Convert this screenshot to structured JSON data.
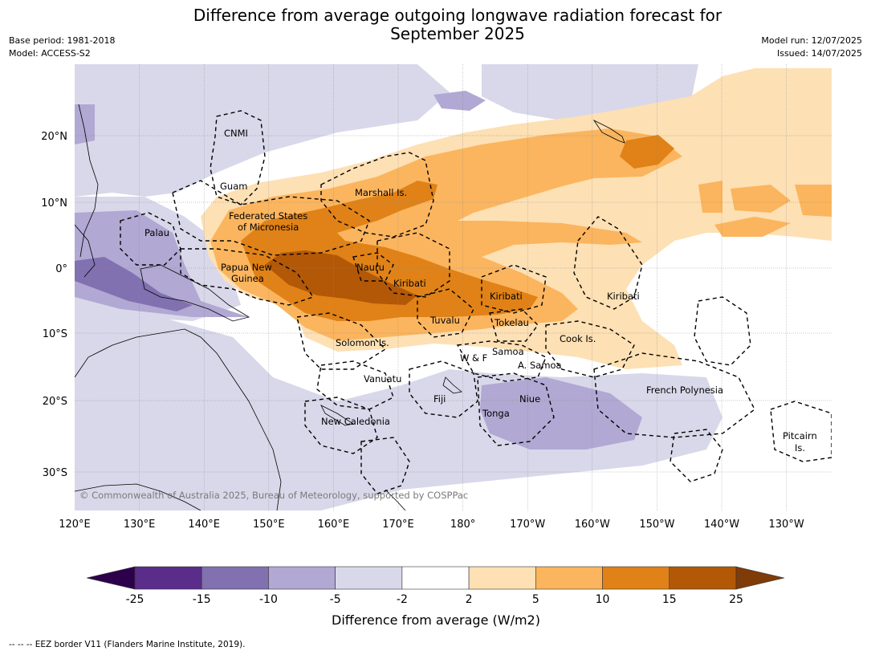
{
  "title_line1": "Difference from average outgoing longwave radiation forecast for",
  "title_line2": "September 2025",
  "meta": {
    "base_period": "Base period: 1981-2018",
    "model": "Model: ACCESS-S2",
    "model_run": "Model run: 12/07/2025",
    "issued": "Issued: 14/07/2025"
  },
  "lon_ticks": [
    "120°E",
    "130°E",
    "140°E",
    "150°E",
    "160°E",
    "170°E",
    "180°",
    "170°W",
    "160°W",
    "150°W",
    "140°W",
    "130°W"
  ],
  "lat_ticks": [
    "20°N",
    "10°N",
    "0°",
    "10°S",
    "20°S",
    "30°S"
  ],
  "places": {
    "cnmi": "CNMI",
    "guam": "Guam",
    "marshall": "Marshall Is.",
    "fsm1": "Federated States",
    "fsm2": "of Micronesia",
    "palau": "Palau",
    "png1": "Papua New",
    "png2": "Guinea",
    "nauru": "Nauru",
    "kiribati_w": "Kiribati",
    "kiribati_c": "Kiribati",
    "kiribati_e": "Kiribati",
    "tuvalu": "Tuvalu",
    "tokelau": "Tokelau",
    "solomon": "Solomon Is.",
    "wf": "W & F",
    "samoa": "Samoa",
    "asamoa": "A. Samoa",
    "cook": "Cook Is.",
    "vanuatu": "Vanuatu",
    "fiji": "Fiji",
    "niue": "Niue",
    "tonga": "Tonga",
    "french_polynesia": "French Polynesia",
    "pitcairn1": "Pitcairn",
    "pitcairn2": "Is.",
    "new_caledonia": "New Caledonia"
  },
  "copyright": "© Commonwealth of Australia 2025, Bureau of Meteorology, supported by COSPPac",
  "colorbar": {
    "ticks": [
      "-25",
      "-15",
      "-10",
      "-5",
      "-2",
      "2",
      "5",
      "10",
      "15",
      "25"
    ],
    "colors": [
      "#5a2d8a",
      "#8171b0",
      "#b1a8d3",
      "#d8d8ea",
      "#ffffff",
      "#fde0b4",
      "#fbb55e",
      "#e08217",
      "#b35806"
    ],
    "under_color": "#2d004b",
    "over_color": "#7f3b08",
    "label": "Difference from average (W/m2)"
  },
  "eez_note": "--  --  -- EEZ border V11 (Flanders Marine Institute, 2019)."
}
